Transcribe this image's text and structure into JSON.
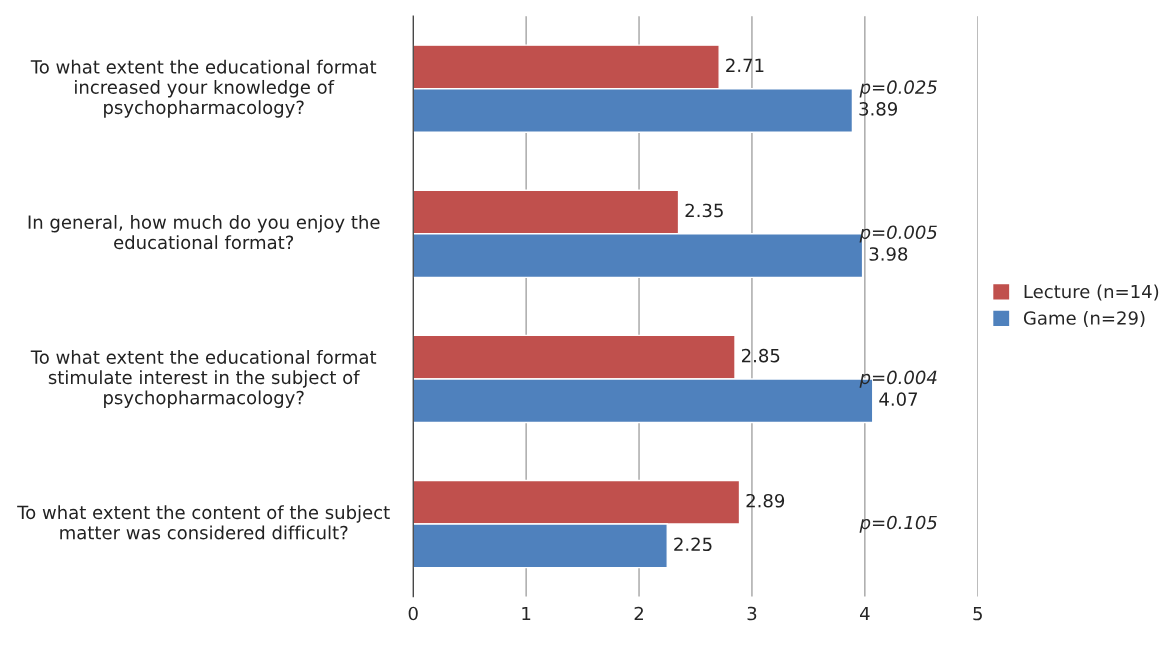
{
  "chart_data": {
    "type": "bar",
    "orientation": "horizontal",
    "categories": [
      "To what extent the educational format increased your knowledge of psychopharmacology?",
      "In general, how much do you enjoy the educational format?",
      "To what extent the educational format stimulate interest in the subject of psychopharmacology?",
      "To what extent the content of the subject matter was considered difficult?"
    ],
    "series": [
      {
        "name": "Lecture (n=14)",
        "color": "#c0504d",
        "values": [
          2.71,
          2.35,
          2.85,
          2.89
        ]
      },
      {
        "name": "Game (n=29)",
        "color": "#4f81bd",
        "values": [
          3.89,
          3.98,
          4.07,
          2.25
        ]
      }
    ],
    "xlim": [
      0,
      5
    ],
    "xticks": [
      0,
      1,
      2,
      3,
      4,
      5
    ],
    "grid": "x",
    "legend": "right",
    "data_labels": true,
    "annotations": [
      "p=0.025",
      "p=0.005",
      "p=0.004",
      "p=0.105"
    ]
  }
}
